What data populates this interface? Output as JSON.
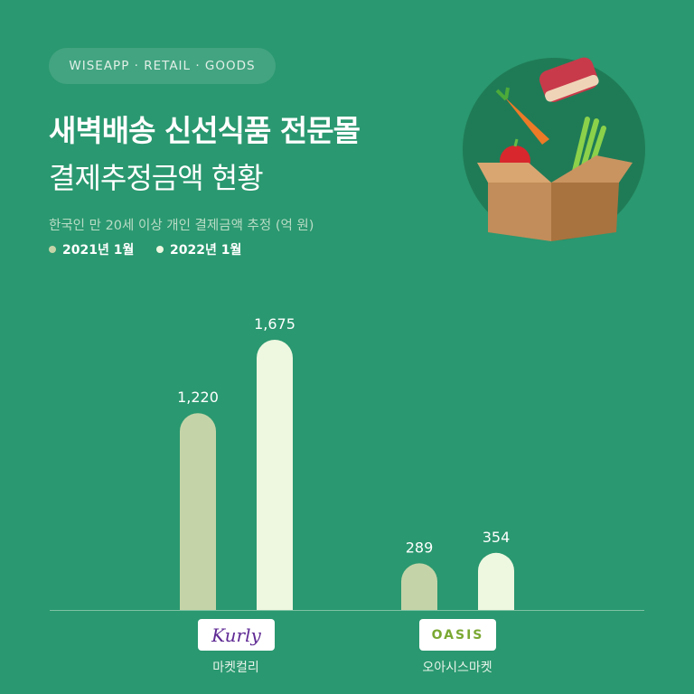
{
  "header": {
    "tag": "WISEAPP · RETAIL · GOODS",
    "title_line1": "새벽배송 신선식품 전문몰",
    "title_line2": "결제추정금액 현황",
    "subtitle": "한국인 만 20세 이상 개인 결제금액 추정 (억 원)"
  },
  "colors": {
    "background": "#2a9870",
    "series_2021": "#c5d4a8",
    "series_2022": "#eef7e0"
  },
  "chart_data": {
    "type": "bar",
    "categories": [
      "마켓컬리",
      "오아시스마켓"
    ],
    "series": [
      {
        "name": "2021년 1월",
        "values": [
          1220,
          289
        ]
      },
      {
        "name": "2022년 1월",
        "values": [
          1675,
          354
        ]
      }
    ],
    "data_labels": [
      [
        "1,220",
        "289"
      ],
      [
        "1,675",
        "354"
      ]
    ],
    "ylim": [
      0,
      1800
    ],
    "grid": false,
    "legend_position": "top-left",
    "category_logos": [
      "Kurly",
      "OASIS"
    ]
  },
  "illustration": "fresh-food-box-icon"
}
